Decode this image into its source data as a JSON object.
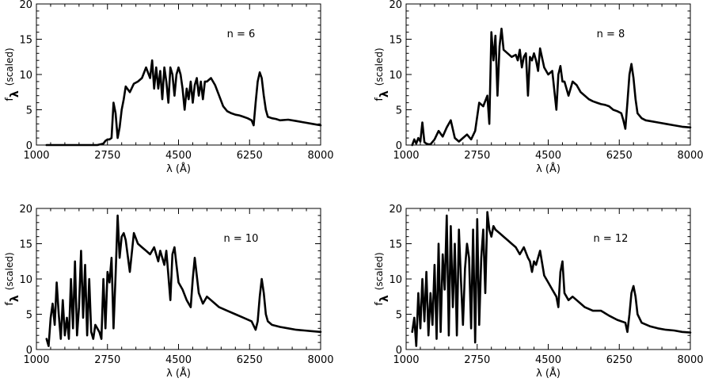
{
  "figure": {
    "panel_count": 4,
    "line_color": "#000000",
    "background": "#ffffff"
  },
  "chart_data": [
    {
      "type": "line",
      "annotation": "n = 6",
      "xlabel": "λ (Å)",
      "ylabel_main": "f",
      "ylabel_sub": "λ",
      "ylabel_note": "(scaled)",
      "xlim": [
        1000,
        8000
      ],
      "ylim": [
        0,
        20
      ],
      "xticks": [
        1000,
        2750,
        4500,
        6250,
        8000
      ],
      "yticks": [
        0,
        5,
        10,
        15,
        20
      ],
      "grid": false,
      "series": [
        {
          "x": [
            1250,
            1500,
            1750,
            2000,
            2250,
            2500,
            2650,
            2700,
            2750,
            2800,
            2850,
            2900,
            2950,
            3000,
            3050,
            3100,
            3150,
            3200,
            3300,
            3400,
            3500,
            3600,
            3700,
            3800,
            3850,
            3900,
            3950,
            4000,
            4050,
            4100,
            4150,
            4200,
            4250,
            4300,
            4350,
            4400,
            4450,
            4500,
            4550,
            4600,
            4650,
            4700,
            4750,
            4800,
            4850,
            4900,
            4950,
            5000,
            5050,
            5100,
            5150,
            5200,
            5300,
            5400,
            5500,
            5600,
            5700,
            5800,
            5900,
            6000,
            6100,
            6200,
            6300,
            6350,
            6400,
            6450,
            6500,
            6550,
            6600,
            6650,
            6700,
            6800,
            6900,
            7000,
            7200,
            7400,
            7600,
            7800,
            8000
          ],
          "y": [
            0,
            0,
            0,
            0,
            0,
            0,
            0.2,
            0.6,
            0.8,
            0.8,
            1.0,
            6.0,
            4.5,
            1.0,
            2.5,
            5.0,
            6.5,
            8.3,
            7.5,
            8.7,
            9.0,
            9.5,
            11.0,
            9.5,
            12.0,
            8.0,
            11.0,
            8.0,
            10.5,
            6.5,
            11.0,
            9.0,
            6.0,
            11.0,
            10.0,
            7.0,
            10.0,
            11.0,
            10.0,
            8.0,
            5.0,
            8.0,
            6.5,
            9.0,
            6.0,
            8.5,
            9.5,
            7.0,
            9.0,
            6.5,
            9.0,
            9.0,
            9.5,
            8.5,
            7.0,
            5.5,
            4.8,
            4.5,
            4.3,
            4.2,
            4.0,
            3.8,
            3.5,
            2.8,
            6.0,
            9.0,
            10.3,
            9.5,
            7.0,
            5.0,
            4.0,
            3.8,
            3.7,
            3.5,
            3.6,
            3.4,
            3.2,
            3.0,
            2.8
          ]
        }
      ]
    },
    {
      "type": "line",
      "annotation": "n = 8",
      "xlabel": "λ (Å)",
      "ylabel_main": "f",
      "ylabel_sub": "λ",
      "ylabel_note": "(scaled)",
      "xlim": [
        1000,
        8000
      ],
      "ylim": [
        0,
        20
      ],
      "xticks": [
        1000,
        2750,
        4500,
        6250,
        8000
      ],
      "yticks": [
        0,
        5,
        10,
        15,
        20
      ],
      "grid": false,
      "series": [
        {
          "x": [
            1150,
            1200,
            1250,
            1300,
            1350,
            1400,
            1450,
            1500,
            1550,
            1600,
            1700,
            1800,
            1900,
            2000,
            2100,
            2200,
            2300,
            2400,
            2500,
            2600,
            2700,
            2800,
            2900,
            3000,
            3050,
            3100,
            3150,
            3200,
            3250,
            3300,
            3350,
            3400,
            3500,
            3600,
            3700,
            3750,
            3800,
            3850,
            3900,
            3950,
            4000,
            4050,
            4100,
            4150,
            4200,
            4250,
            4300,
            4400,
            4500,
            4600,
            4700,
            4750,
            4800,
            4850,
            4900,
            5000,
            5100,
            5200,
            5300,
            5400,
            5500,
            5600,
            5700,
            5800,
            5900,
            6000,
            6100,
            6200,
            6300,
            6350,
            6400,
            6450,
            6500,
            6550,
            6600,
            6650,
            6700,
            6800,
            6900,
            7000,
            7200,
            7400,
            7600,
            7800,
            8000
          ],
          "y": [
            0,
            0.8,
            0.2,
            1.0,
            0.5,
            3.2,
            0.4,
            0.2,
            0.1,
            0.1,
            0.8,
            2.0,
            1.2,
            2.5,
            3.5,
            1.0,
            0.5,
            1.0,
            1.5,
            0.8,
            2.0,
            6.0,
            5.5,
            7.0,
            3.0,
            16.0,
            12.0,
            15.5,
            7.0,
            14.0,
            16.5,
            13.5,
            13.0,
            12.5,
            12.8,
            12.0,
            13.5,
            11.0,
            12.5,
            13.0,
            7.0,
            12.5,
            12.0,
            13.0,
            12.0,
            10.5,
            13.7,
            11.0,
            10.0,
            10.5,
            5.0,
            10.0,
            11.2,
            9.0,
            9.0,
            7.0,
            9.0,
            8.5,
            7.5,
            7.0,
            6.5,
            6.2,
            6.0,
            5.8,
            5.7,
            5.5,
            5.0,
            4.8,
            4.5,
            3.5,
            2.3,
            6.0,
            10.0,
            11.5,
            9.5,
            6.5,
            4.5,
            3.8,
            3.5,
            3.4,
            3.2,
            3.0,
            2.8,
            2.6,
            2.5
          ]
        }
      ]
    },
    {
      "type": "line",
      "annotation": "n = 10",
      "xlabel": "λ (Å)",
      "ylabel_main": "f",
      "ylabel_sub": "λ",
      "ylabel_note": "(scaled)",
      "xlim": [
        1000,
        8000
      ],
      "ylim": [
        0,
        20
      ],
      "xticks": [
        1000,
        2750,
        4500,
        6250,
        8000
      ],
      "yticks": [
        0,
        5,
        10,
        15,
        20
      ],
      "grid": false,
      "series": [
        {
          "x": [
            1250,
            1300,
            1350,
            1400,
            1450,
            1500,
            1550,
            1600,
            1650,
            1700,
            1750,
            1800,
            1850,
            1900,
            1950,
            2000,
            2050,
            2100,
            2150,
            2200,
            2250,
            2300,
            2350,
            2400,
            2450,
            2500,
            2550,
            2600,
            2650,
            2700,
            2750,
            2800,
            2850,
            2900,
            2950,
            3000,
            3050,
            3100,
            3150,
            3200,
            3300,
            3400,
            3500,
            3600,
            3700,
            3800,
            3900,
            4000,
            4050,
            4100,
            4150,
            4200,
            4250,
            4300,
            4350,
            4400,
            4450,
            4500,
            4600,
            4700,
            4800,
            4850,
            4900,
            5000,
            5100,
            5200,
            5300,
            5500,
            5700,
            5900,
            6100,
            6300,
            6400,
            6450,
            6500,
            6550,
            6600,
            6650,
            6700,
            6800,
            7000,
            7200,
            7400,
            7600,
            7800,
            8000
          ],
          "y": [
            1.5,
            0.5,
            4.5,
            6.5,
            3.5,
            9.5,
            5.0,
            1.5,
            7.0,
            2.0,
            4.5,
            1.5,
            10.0,
            3.0,
            12.5,
            2.0,
            6.0,
            14.0,
            4.5,
            12.0,
            2.0,
            10.0,
            2.5,
            1.5,
            3.5,
            3.0,
            2.5,
            1.5,
            10.0,
            3.0,
            11.0,
            9.5,
            13.0,
            3.0,
            10.5,
            19.0,
            13.0,
            16.0,
            16.5,
            15.5,
            11.0,
            16.5,
            15.0,
            14.5,
            14.0,
            13.5,
            14.5,
            12.5,
            14.0,
            13.0,
            12.0,
            14.0,
            10.5,
            7.0,
            13.5,
            14.5,
            12.0,
            9.5,
            8.5,
            7.0,
            6.0,
            10.0,
            13.0,
            8.0,
            6.5,
            7.5,
            7.0,
            6.0,
            5.5,
            5.0,
            4.5,
            4.0,
            2.8,
            4.0,
            7.5,
            10.0,
            8.0,
            5.0,
            4.0,
            3.5,
            3.2,
            3.0,
            2.8,
            2.7,
            2.6,
            2.5
          ]
        }
      ]
    },
    {
      "type": "line",
      "annotation": "n = 12",
      "xlabel": "λ (Å)",
      "ylabel_main": "f",
      "ylabel_sub": "λ",
      "ylabel_note": "(scaled)",
      "xlim": [
        1000,
        8000
      ],
      "ylim": [
        0,
        20
      ],
      "xticks": [
        1000,
        2750,
        4500,
        6250,
        8000
      ],
      "yticks": [
        0,
        5,
        10,
        15,
        20
      ],
      "grid": false,
      "series": [
        {
          "x": [
            1150,
            1200,
            1250,
            1300,
            1350,
            1400,
            1450,
            1500,
            1550,
            1600,
            1650,
            1700,
            1750,
            1800,
            1850,
            1900,
            1950,
            2000,
            2050,
            2100,
            2150,
            2200,
            2250,
            2300,
            2350,
            2400,
            2450,
            2500,
            2550,
            2600,
            2650,
            2700,
            2750,
            2800,
            2850,
            2900,
            2950,
            3000,
            3050,
            3100,
            3150,
            3200,
            3300,
            3400,
            3500,
            3600,
            3700,
            3800,
            3900,
            4000,
            4050,
            4100,
            4150,
            4200,
            4300,
            4400,
            4500,
            4600,
            4700,
            4750,
            4800,
            4850,
            4900,
            5000,
            5100,
            5200,
            5400,
            5600,
            5800,
            6000,
            6200,
            6400,
            6450,
            6500,
            6550,
            6600,
            6650,
            6700,
            6800,
            7000,
            7200,
            7400,
            7600,
            7800,
            8000
          ],
          "y": [
            2.5,
            4.5,
            0.5,
            8.0,
            3.0,
            10.0,
            4.0,
            11.0,
            2.0,
            8.0,
            3.5,
            12.0,
            1.5,
            15.0,
            2.5,
            13.5,
            8.5,
            19.0,
            2.0,
            17.5,
            6.0,
            15.0,
            2.0,
            17.0,
            10.0,
            3.5,
            11.5,
            15.0,
            13.0,
            3.0,
            17.0,
            1.0,
            18.5,
            3.5,
            13.0,
            17.0,
            8.0,
            19.5,
            17.0,
            16.0,
            17.5,
            17.0,
            16.5,
            16.0,
            15.5,
            15.0,
            14.5,
            13.5,
            14.5,
            13.0,
            12.5,
            11.0,
            12.5,
            12.0,
            14.0,
            10.5,
            9.5,
            8.5,
            7.5,
            6.0,
            11.0,
            12.5,
            8.0,
            7.0,
            7.5,
            7.0,
            6.0,
            5.5,
            5.5,
            4.8,
            4.2,
            3.8,
            2.5,
            5.0,
            8.0,
            9.0,
            7.5,
            5.0,
            3.8,
            3.3,
            3.0,
            2.8,
            2.7,
            2.5,
            2.4
          ]
        }
      ]
    }
  ]
}
